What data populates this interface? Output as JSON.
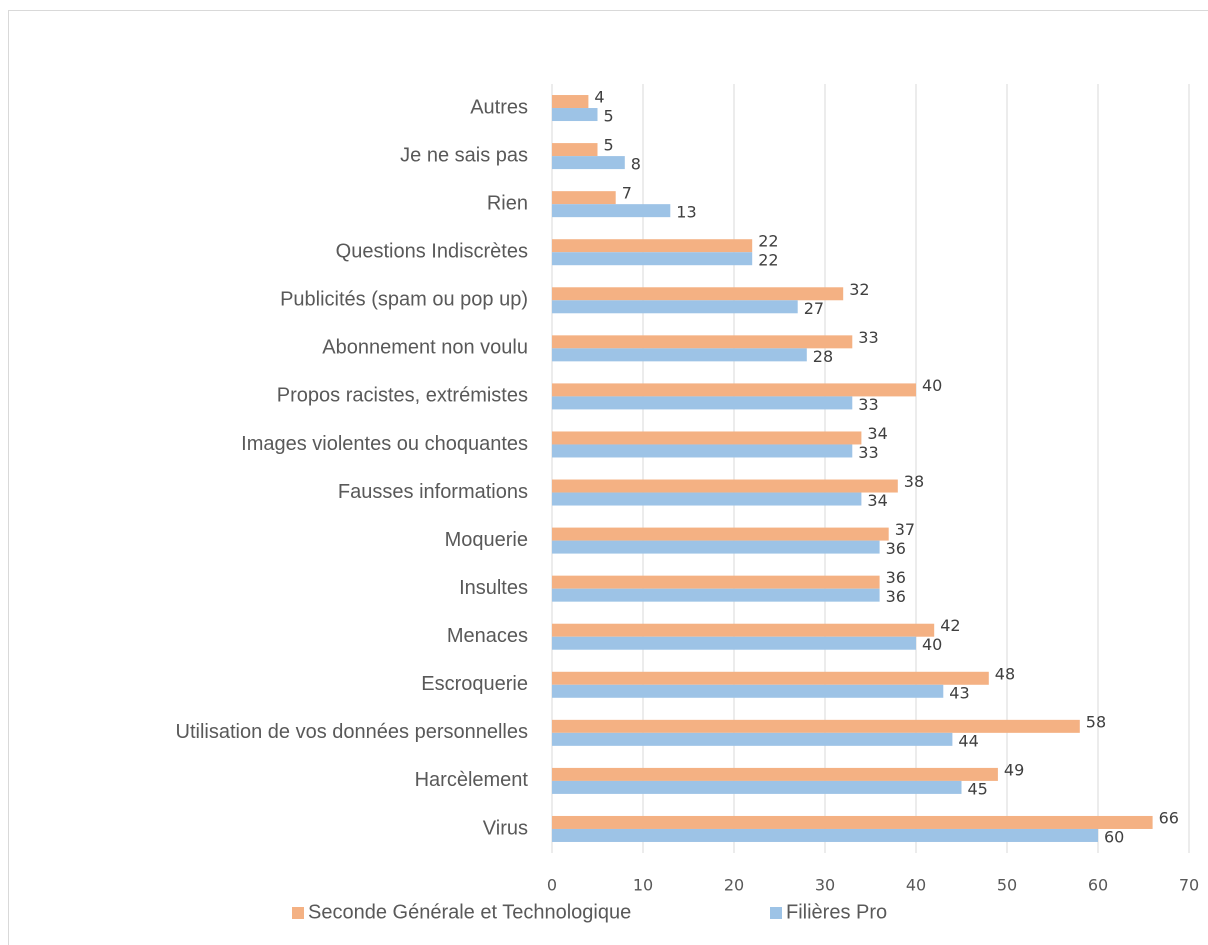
{
  "chart_data": {
    "type": "bar",
    "orientation": "horizontal",
    "categories": [
      "Autres",
      "Je ne sais pas",
      "Rien",
      "Questions Indiscrètes",
      "Publicités (spam ou pop up)",
      "Abonnement non voulu",
      "Propos racistes, extrémistes",
      "Images violentes  ou choquantes",
      "Fausses informations",
      "Moquerie",
      "Insultes",
      "Menaces",
      "Escroquerie",
      "Utilisation de vos données personnelles",
      "Harcèlement",
      "Virus"
    ],
    "series": [
      {
        "name": "Seconde Générale et Technologique",
        "color": "#f4b183",
        "values": [
          4,
          5,
          7,
          22,
          32,
          33,
          40,
          34,
          38,
          37,
          36,
          42,
          48,
          58,
          49,
          66
        ]
      },
      {
        "name": "Filières Pro",
        "color": "#9dc3e6",
        "values": [
          5,
          8,
          13,
          22,
          27,
          28,
          33,
          33,
          34,
          36,
          36,
          40,
          43,
          44,
          45,
          60
        ]
      }
    ],
    "xlim": [
      0,
      70
    ],
    "xticks": [
      0,
      10,
      20,
      30,
      40,
      50,
      60,
      70
    ],
    "grid": true,
    "legend": "bottom"
  }
}
